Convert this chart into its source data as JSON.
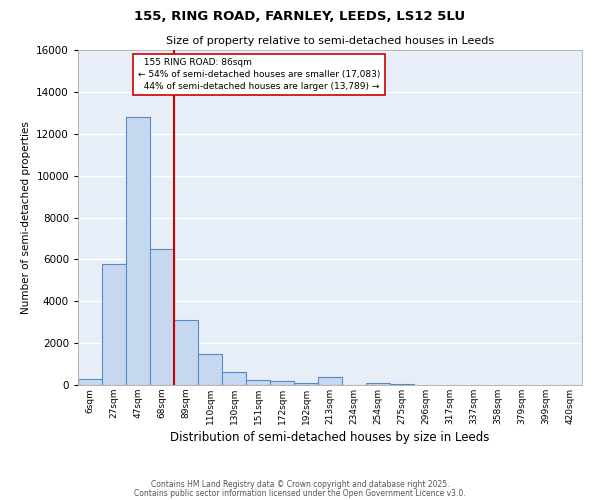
{
  "title_line1": "155, RING ROAD, FARNLEY, LEEDS, LS12 5LU",
  "title_line2": "Size of property relative to semi-detached houses in Leeds",
  "xlabel": "Distribution of semi-detached houses by size in Leeds",
  "ylabel": "Number of semi-detached properties",
  "bar_labels": [
    "6sqm",
    "27sqm",
    "47sqm",
    "68sqm",
    "89sqm",
    "110sqm",
    "130sqm",
    "151sqm",
    "172sqm",
    "192sqm",
    "213sqm",
    "234sqm",
    "254sqm",
    "275sqm",
    "296sqm",
    "317sqm",
    "337sqm",
    "358sqm",
    "379sqm",
    "399sqm",
    "420sqm"
  ],
  "bar_values": [
    300,
    5800,
    12800,
    6500,
    3100,
    1500,
    600,
    250,
    200,
    100,
    400,
    0,
    100,
    50,
    0,
    0,
    0,
    0,
    0,
    0,
    0
  ],
  "bar_color": "#C5D8F0",
  "bar_edge_color": "#5589C8",
  "property_label": "155 RING ROAD: 86sqm",
  "pct_smaller": 54,
  "pct_larger": 44,
  "n_smaller": 17083,
  "n_larger": 13789,
  "vline_color": "#CC0000",
  "vline_bin_index": 3.5,
  "annotation_box_edge": "#CC0000",
  "ylim": [
    0,
    16000
  ],
  "yticks": [
    0,
    2000,
    4000,
    6000,
    8000,
    10000,
    12000,
    14000,
    16000
  ],
  "background_color": "#E8EEF8",
  "grid_color": "#FFFFFF",
  "footer_line1": "Contains HM Land Registry data © Crown copyright and database right 2025.",
  "footer_line2": "Contains public sector information licensed under the Open Government Licence v3.0."
}
